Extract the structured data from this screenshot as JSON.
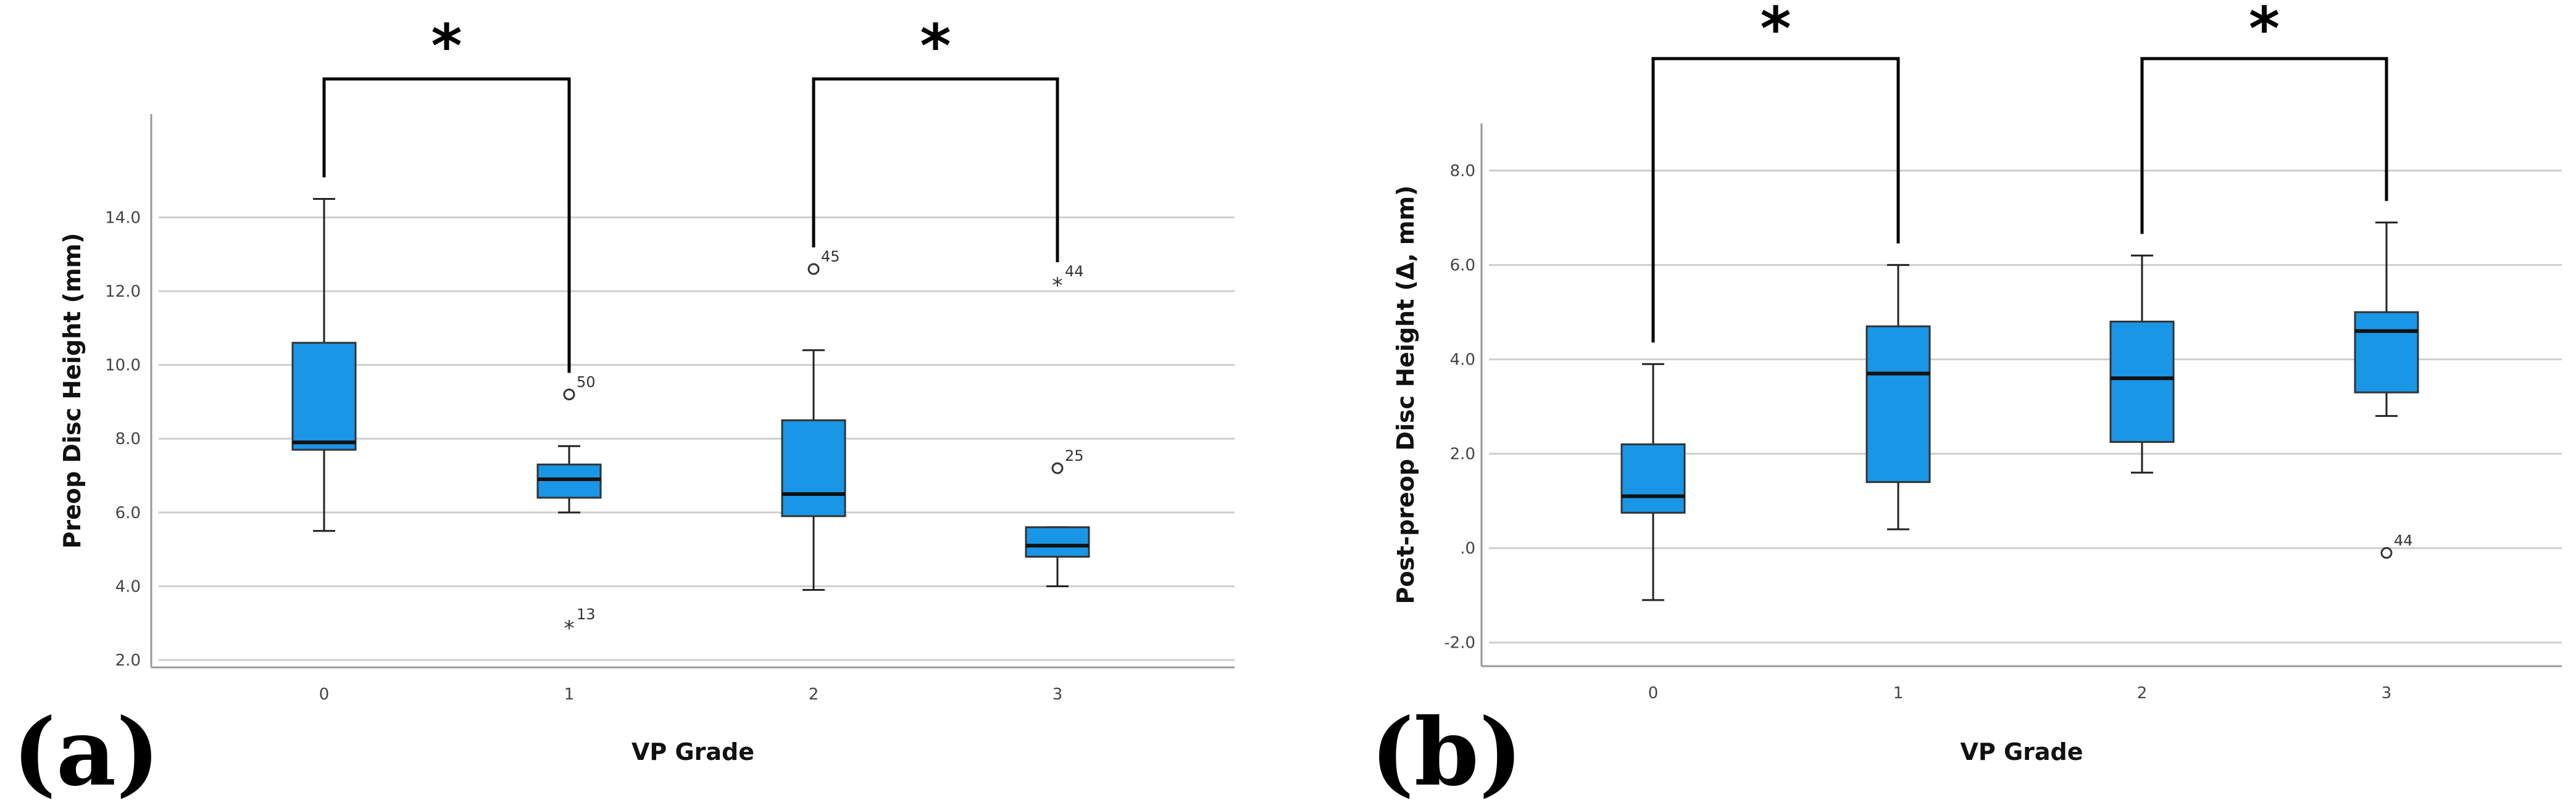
{
  "chart_data": [
    {
      "type": "boxplot",
      "panel_label": "(a)",
      "xlabel": "VP Grade",
      "ylabel": "Preop Disc Height (mm)",
      "ylim": [
        1.8,
        16.8
      ],
      "y_ticks": [
        "2.0",
        "4.0",
        "6.0",
        "8.0",
        "10.0",
        "12.0",
        "14.0"
      ],
      "categories": [
        "0",
        "1",
        "2",
        "3"
      ],
      "box_color": "#1a96e6",
      "boxes": [
        {
          "category": "0",
          "whisker_low": 5.5,
          "q1": 7.7,
          "median": 7.9,
          "q3": 10.6,
          "whisker_high": 14.5,
          "outliers": []
        },
        {
          "category": "1",
          "whisker_low": 6.0,
          "q1": 6.4,
          "median": 6.9,
          "q3": 7.3,
          "whisker_high": 7.8,
          "outliers": [
            {
              "value": 9.2,
              "label": "50",
              "marker": "circle"
            },
            {
              "value": 2.9,
              "label": "13",
              "marker": "star"
            }
          ]
        },
        {
          "category": "2",
          "whisker_low": 3.9,
          "q1": 5.9,
          "median": 6.5,
          "q3": 8.5,
          "whisker_high": 10.4,
          "outliers": [
            {
              "value": 12.6,
              "label": "45",
              "marker": "circle"
            }
          ]
        },
        {
          "category": "3",
          "whisker_low": 4.0,
          "q1": 4.8,
          "median": 5.1,
          "q3": 5.6,
          "whisker_high": 5.6,
          "outliers": [
            {
              "value": 7.2,
              "label": "25",
              "marker": "circle"
            },
            {
              "value": 12.2,
              "label": "44",
              "marker": "star"
            }
          ]
        }
      ],
      "significance": [
        {
          "between": [
            "0",
            "1"
          ],
          "symbol": "*"
        },
        {
          "between": [
            "2",
            "3"
          ],
          "symbol": "*"
        }
      ],
      "grid": true
    },
    {
      "type": "boxplot",
      "panel_label": "(b)",
      "xlabel": "VP Grade",
      "ylabel": "Post-preop Disc Height (Δ, mm)",
      "ylim": [
        -2.5,
        9.0
      ],
      "y_ticks": [
        "-2.0",
        ".0",
        "2.0",
        "4.0",
        "6.0",
        "8.0"
      ],
      "categories": [
        "0",
        "1",
        "2",
        "3"
      ],
      "box_color": "#1a96e6",
      "boxes": [
        {
          "category": "0",
          "whisker_low": -1.1,
          "q1": 0.75,
          "median": 1.1,
          "q3": 2.2,
          "whisker_high": 3.9,
          "outliers": []
        },
        {
          "category": "1",
          "whisker_low": 0.4,
          "q1": 1.4,
          "median": 3.7,
          "q3": 4.7,
          "whisker_high": 6.0,
          "outliers": []
        },
        {
          "category": "2",
          "whisker_low": 1.6,
          "q1": 2.25,
          "median": 3.6,
          "q3": 4.8,
          "whisker_high": 6.2,
          "outliers": []
        },
        {
          "category": "3",
          "whisker_low": 2.8,
          "q1": 3.3,
          "median": 4.6,
          "q3": 5.0,
          "whisker_high": 6.9,
          "outliers": [
            {
              "value": -0.1,
              "label": "44",
              "marker": "circle"
            }
          ]
        }
      ],
      "significance": [
        {
          "between": [
            "0",
            "1"
          ],
          "symbol": "*"
        },
        {
          "between": [
            "2",
            "3"
          ],
          "symbol": "*"
        }
      ],
      "grid": true
    }
  ]
}
